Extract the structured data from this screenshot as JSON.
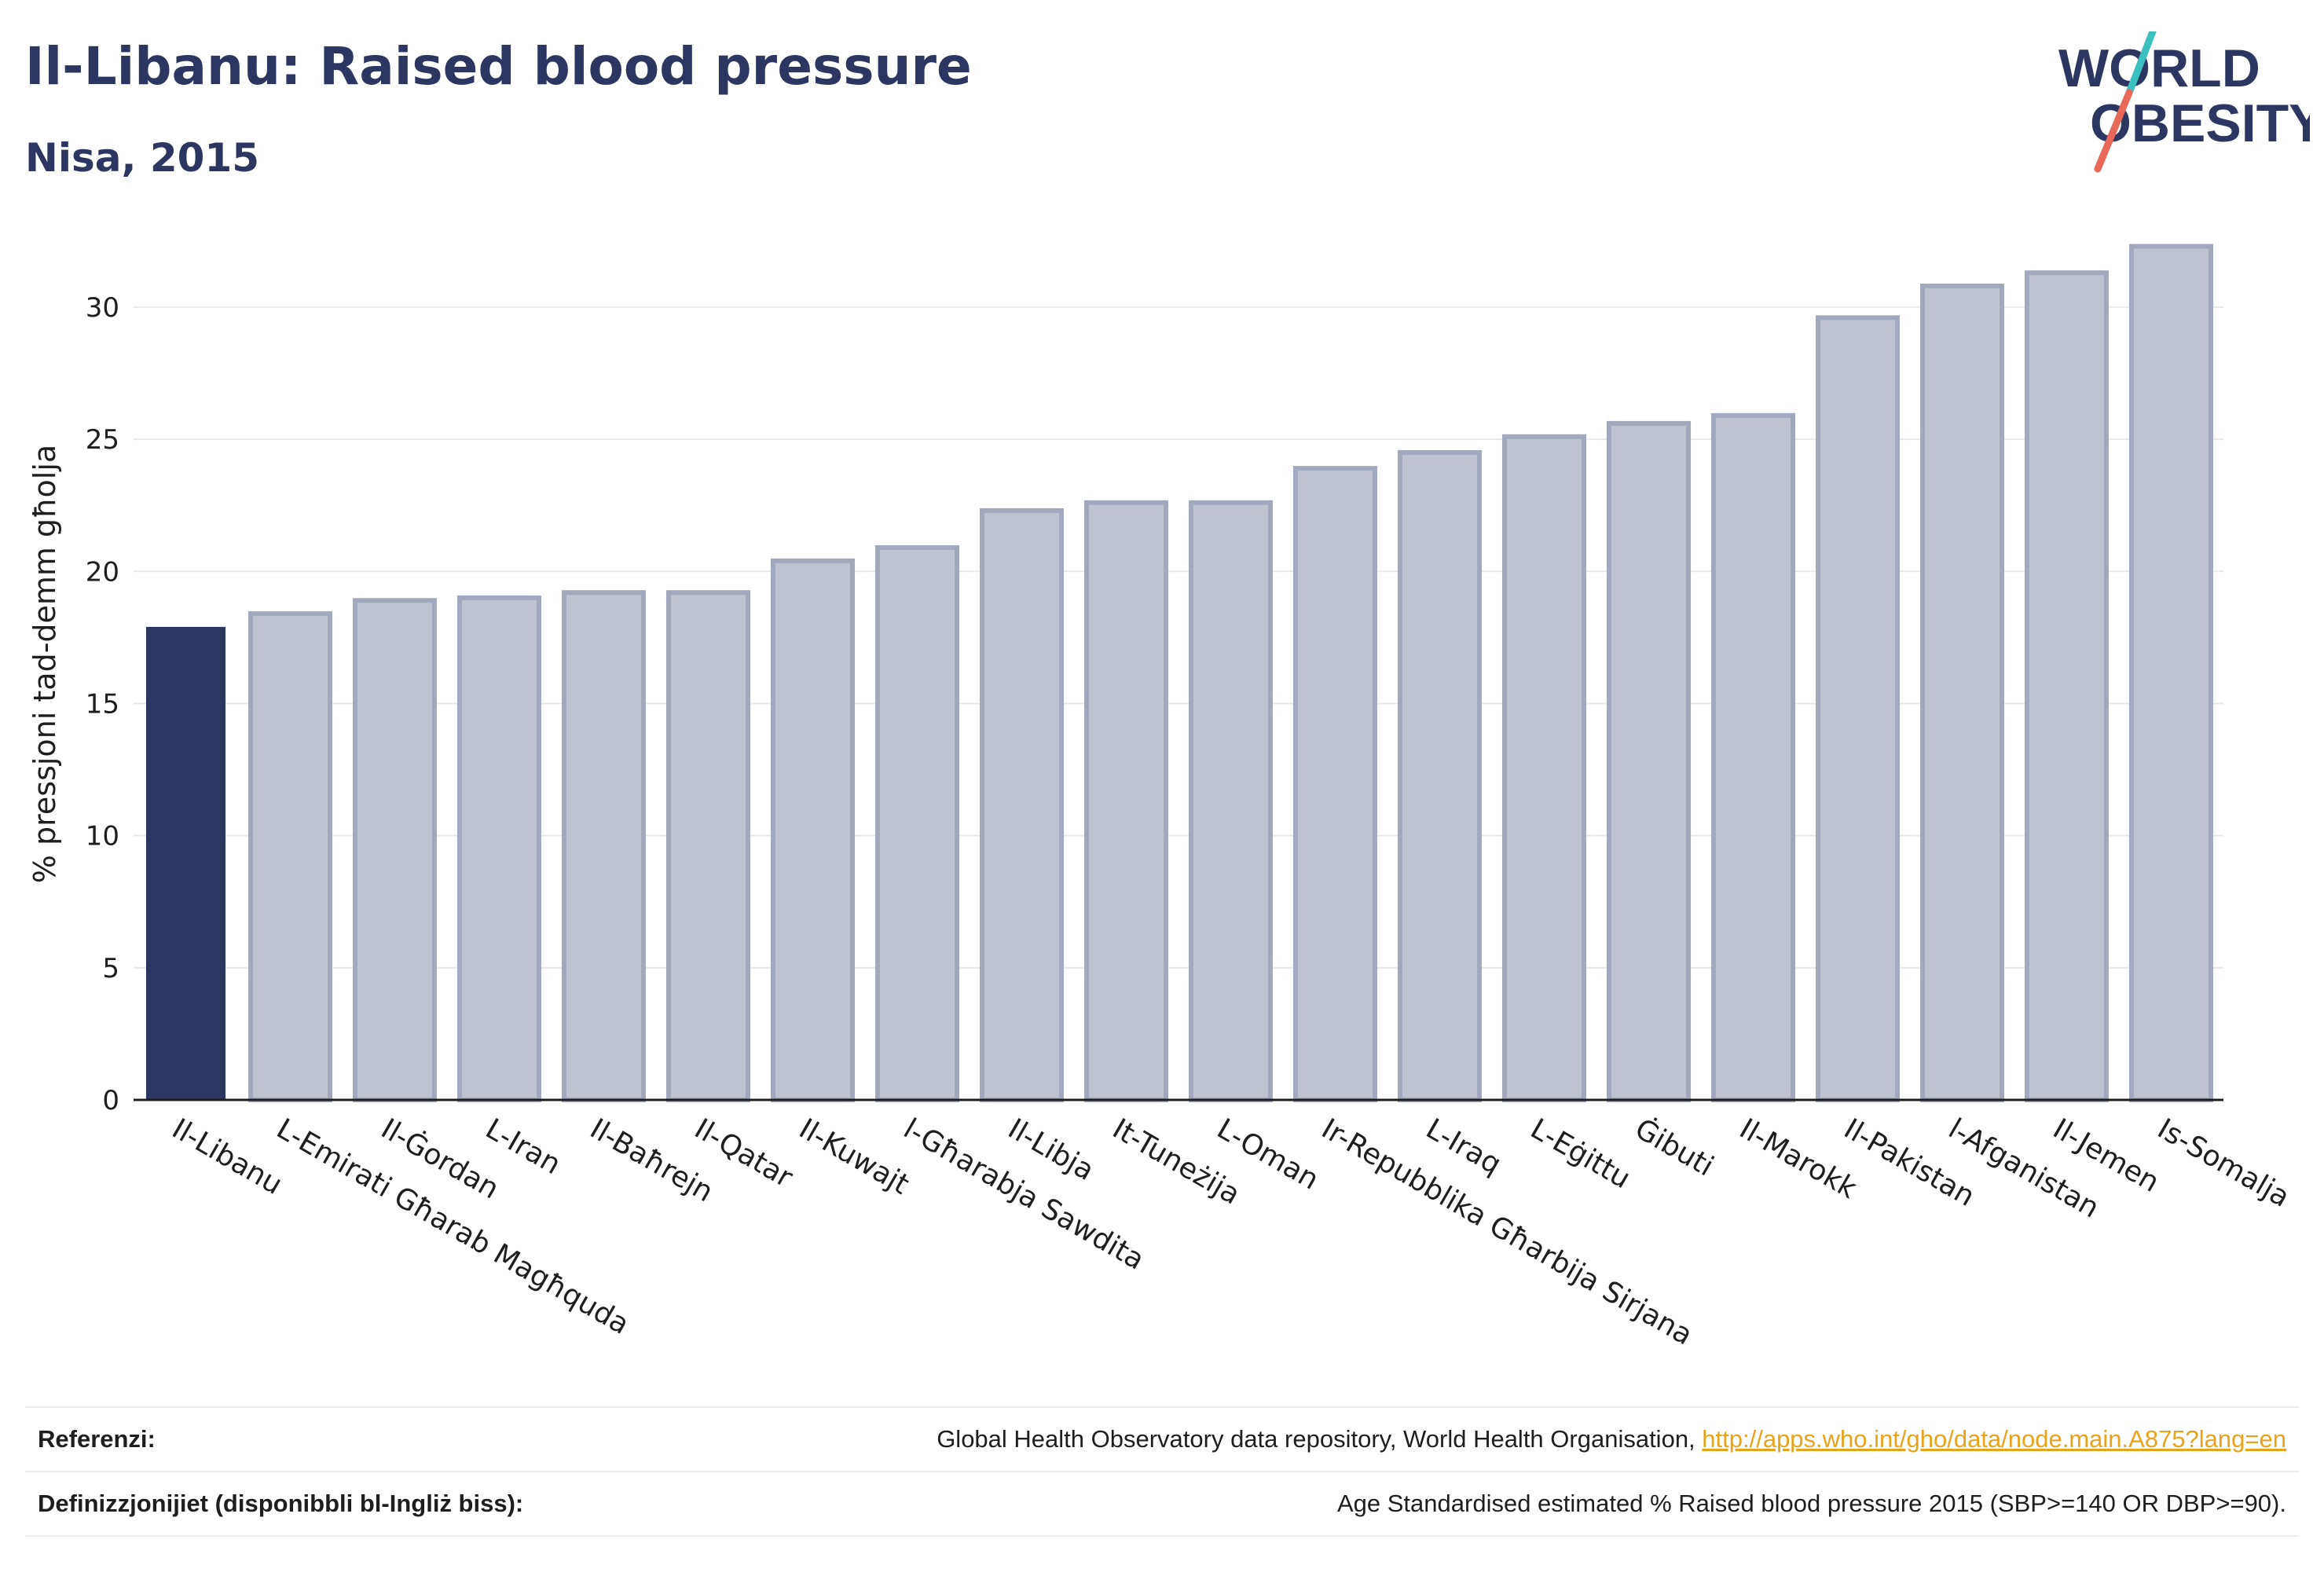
{
  "header": {
    "title": "Il-Libanu: Raised blood pressure",
    "subtitle": "Nisa, 2015"
  },
  "logo": {
    "line1": "WORLD",
    "line2": "OBESITY"
  },
  "chart_data": {
    "type": "bar",
    "categories": [
      "Il-Libanu",
      "L-Emirati Għarab Magħquda",
      "Il-Ġordan",
      "L-Iran",
      "Il-Baħrejn",
      "Il-Qatar",
      "Il-Kuwajt",
      "l-Għarabja Sawdita",
      "Il-Libja",
      "It-Tuneżija",
      "L-Oman",
      "Ir-Repubblika Għarbija Sirjana",
      "L-Iraq",
      "L-Eġittu",
      "Ġibuti",
      "Il-Marokk",
      "Il-Pakistan",
      "l-Afganistan",
      "Il-Jemen",
      "Is-Somalja"
    ],
    "values": [
      17.9,
      18.4,
      18.9,
      19.0,
      19.2,
      19.2,
      20.4,
      20.9,
      22.3,
      22.6,
      22.6,
      23.9,
      24.5,
      25.1,
      25.6,
      25.9,
      29.6,
      30.8,
      31.3,
      32.3
    ],
    "highlight_index": 0,
    "ylabel": "% pressjoni tad-demm għolja",
    "ylim": [
      0,
      33
    ],
    "yticks": [
      0,
      5,
      10,
      15,
      20,
      25,
      30
    ],
    "grid": true,
    "colors": {
      "highlight": "#2c3660",
      "other_fill": "#bfc3d0",
      "other_stroke": "#a2a8be",
      "grid": "#e8e9ee",
      "text": "#1e1e1e"
    }
  },
  "footer": {
    "references_label": "Referenzi:",
    "references_text": "Global Health Observatory data repository, World Health Organisation, ",
    "references_link": "http://apps.who.int/gho/data/node.main.A875?lang=en",
    "definitions_label": "Definizzjonijiet (disponibbli bl-Ingliż biss):",
    "definitions_text": "Age Standardised estimated % Raised blood pressure 2015 (SBP>=140 OR DBP>=90)."
  }
}
